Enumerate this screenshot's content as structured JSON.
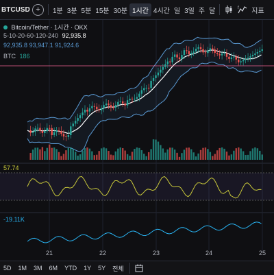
{
  "toolbar": {
    "symbol": "BTCUSDT",
    "timeframes": [
      "1분",
      "3분",
      "5분",
      "15분",
      "30분",
      "1시간",
      "4시간",
      "일",
      "3일",
      "주",
      "달"
    ],
    "active_timeframe": "1시간",
    "indicators_label": "지표"
  },
  "legend": {
    "title": "Bitcoin/Tether · 1시간 · OKX",
    "ma_params": "5-10-20-60-120-240",
    "ma_value": "92,935.8",
    "bb_values": [
      "92,935.8",
      "93,947.1",
      "91,924.6"
    ],
    "volume_label": "BTC",
    "volume_value": "186",
    "osc_value": "57.74",
    "obv_value": "-19.11K"
  },
  "xaxis": [
    "21",
    "22",
    "23",
    "24",
    "25"
  ],
  "ranges": [
    "5D",
    "1M",
    "3M",
    "6M",
    "YTD",
    "1Y",
    "5Y",
    "전체"
  ],
  "colors": {
    "up": "#26a69a",
    "down": "#ef5350",
    "bb": "#5b9bd5",
    "ma": "#ffffff",
    "osc": "#c9c93a",
    "obv": "#29b6f6",
    "hline": "#f06292"
  }
}
